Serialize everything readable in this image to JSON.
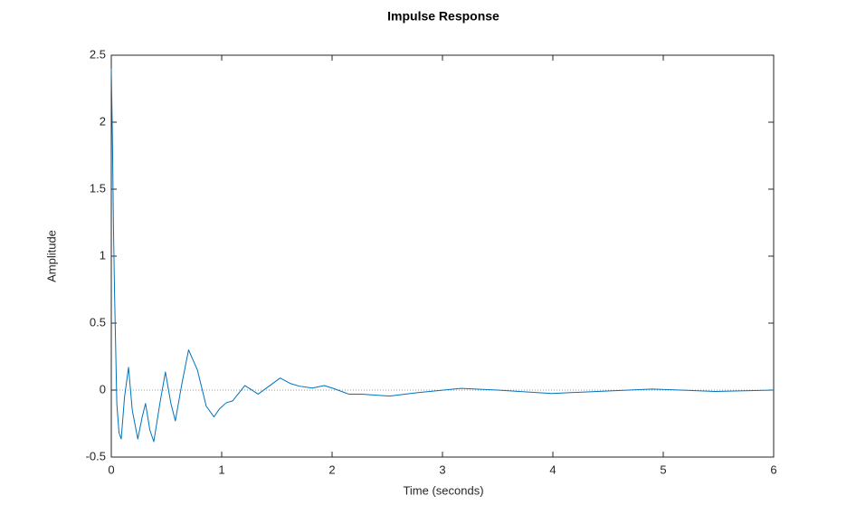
{
  "chart_data": {
    "type": "line",
    "title": "Impulse Response",
    "x_label": "Time (seconds)",
    "y_label": "Amplitude",
    "xlim": [
      0,
      6
    ],
    "ylim": [
      -0.5,
      2.5
    ],
    "xticks": [
      0,
      1,
      2,
      3,
      4,
      5,
      6
    ],
    "yticks": [
      -0.5,
      0,
      0.5,
      1,
      1.5,
      2,
      2.5
    ],
    "series": [
      {
        "color": "#0072bd",
        "x": [
          0,
          0.01,
          0.02,
          0.03,
          0.05,
          0.07,
          0.09,
          0.12,
          0.156,
          0.19,
          0.24,
          0.28,
          0.31,
          0.35,
          0.385,
          0.44,
          0.49,
          0.54,
          0.58,
          0.64,
          0.7,
          0.78,
          0.86,
          0.93,
          0.98,
          1.04,
          1.1,
          1.21,
          1.33,
          1.43,
          1.53,
          1.62,
          1.7,
          1.82,
          1.93,
          2.02,
          2.15,
          2.27,
          2.52,
          2.76,
          3.17,
          3.5,
          3.99,
          4.4,
          4.9,
          5.47,
          6
        ],
        "values": [
          2.4,
          1.9,
          1.2,
          0.7,
          -0.1,
          -0.32,
          -0.365,
          -0.05,
          0.17,
          -0.15,
          -0.365,
          -0.2,
          -0.1,
          -0.3,
          -0.385,
          -0.1,
          0.135,
          -0.1,
          -0.23,
          0.05,
          0.3,
          0.15,
          -0.12,
          -0.2,
          -0.14,
          -0.095,
          -0.08,
          0.034,
          -0.03,
          0.03,
          0.09,
          0.05,
          0.03,
          0.015,
          0.034,
          0.01,
          -0.03,
          -0.03,
          -0.045,
          -0.02,
          0.013,
          0,
          -0.025,
          -0.01,
          0.008,
          -0.01,
          0
        ]
      }
    ]
  }
}
